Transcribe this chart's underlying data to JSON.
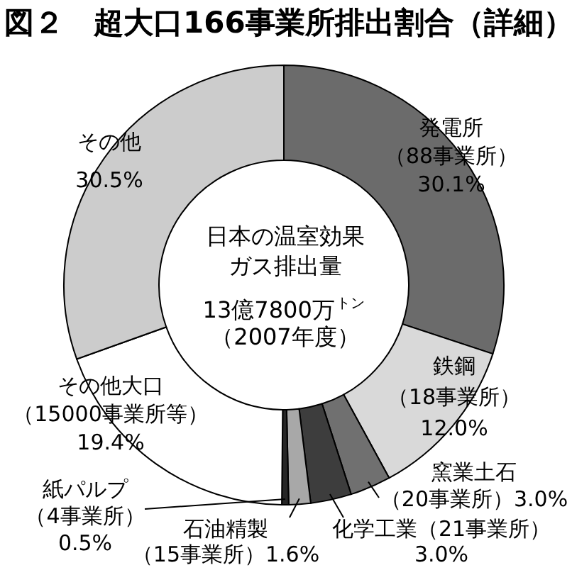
{
  "chart_data": {
    "type": "donut",
    "title": "図２　超大口166事業所排出割合（詳細）",
    "categories": [
      "発電所（88事業所）",
      "鉄鋼（18事業所）",
      "窯業土石（20事業所）",
      "化学工業（21事業所）",
      "石油精製（15事業所）",
      "紙パルプ（4事業所）",
      "その他大口（15000事業所等）",
      "その他"
    ],
    "values": [
      30.1,
      12.0,
      3.0,
      3.0,
      1.6,
      0.5,
      19.4,
      30.5
    ],
    "value_labels": [
      "30.1%",
      "12.0%",
      "3.0%",
      "3.0%",
      "1.6%",
      "0.5%",
      "19.4%",
      "30.5%"
    ],
    "colors": [
      "#6b6b6b",
      "#d9d9d9",
      "#707070",
      "#3d3d3d",
      "#a8a8a8",
      "#262626",
      "#ffffff",
      "#cccccc"
    ],
    "annotations": [
      "日本の温室効果ガス排出量",
      "13億7800万$^{トン}$",
      "（2007年度）"
    ]
  }
}
